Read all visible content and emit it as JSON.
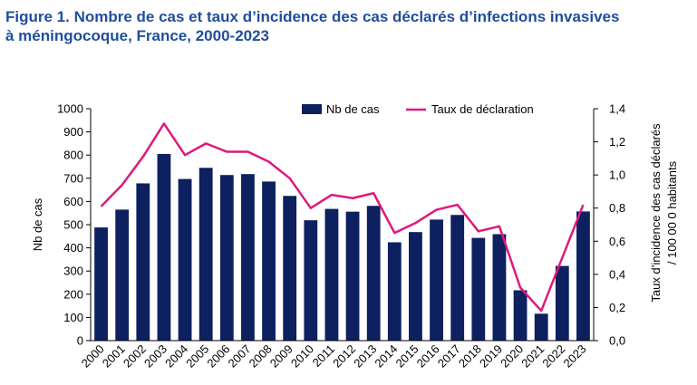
{
  "chart_data": {
    "type": "bar",
    "title_line1": "Figure 1. Nombre de cas et taux d’incidence des cas déclarés d’infections invasives",
    "title_line2": "à méningocoque, France, 2000-2023",
    "categories": [
      "2000",
      "2001",
      "2002",
      "2003",
      "2004",
      "2005",
      "2006",
      "2007",
      "2008",
      "2009",
      "2010",
      "2011",
      "2012",
      "2013",
      "2014",
      "2015",
      "2016",
      "2017",
      "2018",
      "2019",
      "2020",
      "2021",
      "2022",
      "2023"
    ],
    "series": [
      {
        "name": "Nb de cas",
        "type": "bar",
        "axis": "left",
        "color": "#0d2060",
        "values": [
          488,
          565,
          678,
          805,
          697,
          745,
          714,
          718,
          686,
          624,
          519,
          568,
          556,
          581,
          424,
          468,
          522,
          542,
          443,
          459,
          217,
          116,
          322,
          557
        ]
      },
      {
        "name": "Taux de déclaration",
        "type": "line",
        "axis": "right",
        "color": "#e0187a",
        "values": [
          0.81,
          0.94,
          1.11,
          1.31,
          1.12,
          1.19,
          1.14,
          1.14,
          1.08,
          0.98,
          0.8,
          0.88,
          0.86,
          0.89,
          0.65,
          0.71,
          0.79,
          0.82,
          0.66,
          0.69,
          0.32,
          0.18,
          0.5,
          0.82
        ]
      }
    ],
    "ylabel_left": "Nb de cas",
    "ylabel_right_line1": "Taux d’incidence des cas déclarés",
    "ylabel_right_line2": "/ 100 00 0 habitants",
    "ylim_left": [
      0,
      1000
    ],
    "ylim_right": [
      0,
      1.4
    ],
    "yticks_left": [
      "0",
      "100",
      "200",
      "300",
      "400",
      "500",
      "600",
      "700",
      "800",
      "900",
      "1000"
    ],
    "yticks_right": [
      "0,0",
      "0,2",
      "0,4",
      "0,6",
      "0,8",
      "1,0",
      "1,2",
      "1,4"
    ],
    "grid": false,
    "legend_position": "top"
  }
}
